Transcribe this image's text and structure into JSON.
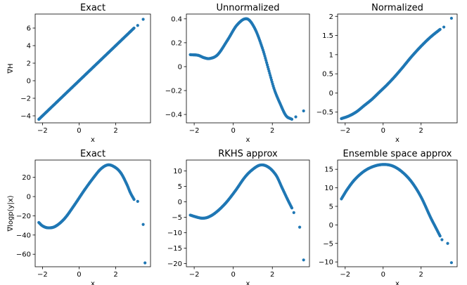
{
  "chart_data": [
    {
      "type": "scatter",
      "title": "Exact",
      "xlabel": "x",
      "ylabel": "∇H",
      "xlim": [
        -2.4,
        3.9
      ],
      "ylim": [
        -4.8,
        7.6
      ],
      "xticks": [
        -2,
        0,
        2
      ],
      "yticks": [
        -4,
        -2,
        0,
        2,
        4,
        6
      ],
      "color": "#1f77b4",
      "curve": {
        "kind": "linear",
        "a": 0,
        "b": 2
      },
      "extra_points": [
        {
          "x": 3.2,
          "y": 6.3
        },
        {
          "x": 3.5,
          "y": 7.0
        }
      ],
      "x_range": [
        -2.2,
        3.0
      ]
    },
    {
      "type": "scatter",
      "title": "Unnormalized",
      "xlabel": "x",
      "ylabel": "",
      "xlim": [
        -2.4,
        3.9
      ],
      "ylim": [
        -0.47,
        0.44
      ],
      "xticks": [
        -2,
        0,
        2
      ],
      "yticks": [
        -0.4,
        -0.2,
        0.0,
        0.2,
        0.4
      ],
      "color": "#1f77b4",
      "curve": {
        "kind": "spline",
        "knots": [
          [
            -2.2,
            0.1
          ],
          [
            -1.8,
            0.095
          ],
          [
            -1.5,
            0.075
          ],
          [
            -1.2,
            0.068
          ],
          [
            -0.8,
            0.1
          ],
          [
            -0.3,
            0.22
          ],
          [
            0.2,
            0.35
          ],
          [
            0.7,
            0.4
          ],
          [
            1.1,
            0.32
          ],
          [
            1.5,
            0.15
          ],
          [
            1.8,
            -0.02
          ],
          [
            2.1,
            -0.19
          ],
          [
            2.4,
            -0.31
          ],
          [
            2.7,
            -0.41
          ],
          [
            3.0,
            -0.44
          ]
        ]
      },
      "extra_points": [
        {
          "x": 3.2,
          "y": -0.42
        },
        {
          "x": 3.6,
          "y": -0.37
        }
      ],
      "x_range": [
        -2.2,
        3.0
      ]
    },
    {
      "type": "scatter",
      "title": "Normalized",
      "xlabel": "x",
      "ylabel": "",
      "xlim": [
        -2.4,
        3.9
      ],
      "ylim": [
        -0.78,
        2.06
      ],
      "xticks": [
        -2,
        0,
        2
      ],
      "yticks": [
        -0.5,
        0.0,
        0.5,
        1.0,
        1.5,
        2.0
      ],
      "color": "#1f77b4",
      "curve": {
        "kind": "spline",
        "knots": [
          [
            -2.2,
            -0.67
          ],
          [
            -1.8,
            -0.6
          ],
          [
            -1.4,
            -0.49
          ],
          [
            -1.0,
            -0.33
          ],
          [
            -0.6,
            -0.17
          ],
          [
            -0.2,
            0.02
          ],
          [
            0.2,
            0.21
          ],
          [
            0.6,
            0.42
          ],
          [
            1.0,
            0.65
          ],
          [
            1.5,
            0.95
          ],
          [
            2.0,
            1.22
          ],
          [
            2.5,
            1.46
          ],
          [
            3.0,
            1.66
          ]
        ]
      },
      "extra_points": [
        {
          "x": 3.2,
          "y": 1.72
        },
        {
          "x": 3.6,
          "y": 1.95
        }
      ],
      "x_range": [
        -2.2,
        3.0
      ]
    },
    {
      "type": "scatter",
      "title": "Exact",
      "xlabel": "x",
      "ylabel": "∇logp(y|x)",
      "xlim": [
        -2.4,
        3.9
      ],
      "ylim": [
        -73,
        38
      ],
      "xticks": [
        -2,
        0,
        2
      ],
      "yticks": [
        -60,
        -40,
        -20,
        0,
        20
      ],
      "color": "#1f77b4",
      "curve": {
        "kind": "spline",
        "knots": [
          [
            -2.2,
            -27
          ],
          [
            -2.0,
            -30.5
          ],
          [
            -1.7,
            -32.5
          ],
          [
            -1.3,
            -31
          ],
          [
            -0.8,
            -23
          ],
          [
            -0.3,
            -10
          ],
          [
            0.3,
            7
          ],
          [
            0.8,
            20
          ],
          [
            1.2,
            29
          ],
          [
            1.6,
            33
          ],
          [
            2.0,
            30
          ],
          [
            2.3,
            24
          ],
          [
            2.6,
            13
          ],
          [
            2.8,
            4
          ],
          [
            3.0,
            -3
          ]
        ]
      },
      "extra_points": [
        {
          "x": 3.2,
          "y": -5
        },
        {
          "x": 3.5,
          "y": -29
        },
        {
          "x": 3.6,
          "y": -69
        }
      ],
      "x_range": [
        -2.2,
        3.0
      ]
    },
    {
      "type": "scatter",
      "title": "RKHS approx",
      "xlabel": "x",
      "ylabel": "",
      "xlim": [
        -2.4,
        3.9
      ],
      "ylim": [
        -21,
        13.5
      ],
      "xticks": [
        -2,
        0,
        2
      ],
      "yticks": [
        -20,
        -15,
        -10,
        -5,
        0,
        5,
        10
      ],
      "color": "#1f77b4",
      "curve": {
        "kind": "spline",
        "knots": [
          [
            -2.2,
            -4.3
          ],
          [
            -1.9,
            -4.9
          ],
          [
            -1.6,
            -5.3
          ],
          [
            -1.3,
            -5.0
          ],
          [
            -0.9,
            -3.5
          ],
          [
            -0.4,
            -0.5
          ],
          [
            0.1,
            3.5
          ],
          [
            0.6,
            8
          ],
          [
            1.0,
            10.5
          ],
          [
            1.4,
            11.9
          ],
          [
            1.8,
            11.2
          ],
          [
            2.2,
            8.5
          ],
          [
            2.5,
            4.5
          ],
          [
            2.8,
            0.5
          ],
          [
            3.0,
            -2.0
          ]
        ]
      },
      "extra_points": [
        {
          "x": 3.1,
          "y": -3.5
        },
        {
          "x": 3.4,
          "y": -8.2
        },
        {
          "x": 3.6,
          "y": -18.8
        }
      ],
      "x_range": [
        -2.2,
        3.0
      ]
    },
    {
      "type": "scatter",
      "title": "Ensemble space approx",
      "xlabel": "x",
      "ylabel": "",
      "xlim": [
        -2.4,
        3.9
      ],
      "ylim": [
        -11.3,
        17.5
      ],
      "xticks": [
        -2,
        0,
        2
      ],
      "yticks": [
        -10,
        -5,
        0,
        5,
        10,
        15
      ],
      "color": "#1f77b4",
      "curve": {
        "kind": "spline",
        "knots": [
          [
            -2.2,
            7
          ],
          [
            -1.9,
            9.5
          ],
          [
            -1.5,
            12.2
          ],
          [
            -1.0,
            14.5
          ],
          [
            -0.5,
            15.8
          ],
          [
            0.0,
            16.3
          ],
          [
            0.5,
            15.9
          ],
          [
            1.0,
            14.3
          ],
          [
            1.5,
            11.6
          ],
          [
            2.0,
            7.5
          ],
          [
            2.5,
            2.0
          ],
          [
            2.8,
            -1.0
          ],
          [
            3.0,
            -3.0
          ]
        ]
      },
      "extra_points": [
        {
          "x": 3.1,
          "y": -4.0
        },
        {
          "x": 3.4,
          "y": -5.0
        },
        {
          "x": 3.6,
          "y": -10.2
        }
      ],
      "x_range": [
        -2.2,
        3.0
      ]
    }
  ]
}
